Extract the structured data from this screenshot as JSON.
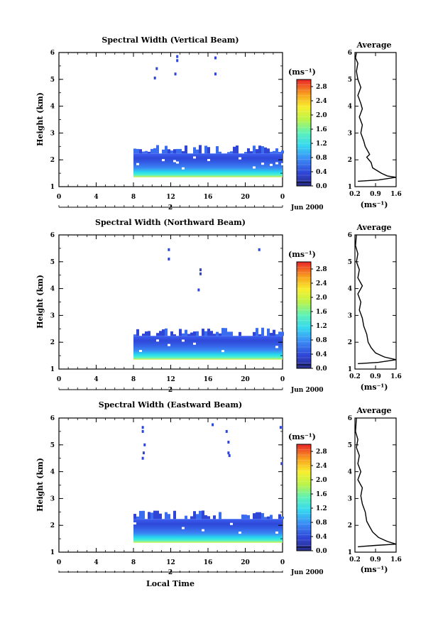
{
  "panels": [
    {
      "title": "Spectral Width (Vertical Beam)",
      "ylabel": "Height (km)",
      "unit_label": "(ms⁻¹)",
      "date_label": "Jun 2000",
      "day_label": "2",
      "avg_title": "Average",
      "avg_xlabel": "(ms⁻¹)"
    },
    {
      "title": "Spectral Width (Northward Beam)",
      "ylabel": "Height (km)",
      "unit_label": "(ms⁻¹)",
      "date_label": "Jun 2000",
      "day_label": "2",
      "avg_title": "Average",
      "avg_xlabel": "(ms⁻¹)"
    },
    {
      "title": "Spectral Width (Eastward Beam)",
      "ylabel": "Height (km)",
      "unit_label": "(ms⁻¹)",
      "date_label": "Jun 2000",
      "day_label": "2",
      "avg_title": "Average",
      "avg_xlabel": "(ms⁻¹)"
    }
  ],
  "xlabel_bottom": "Local Time",
  "chart_data": [
    {
      "type": "heatmap",
      "title": "Spectral Width (Vertical Beam)",
      "ylabel": "Height (km)",
      "xlim": [
        0,
        24
      ],
      "ylim": [
        1,
        6
      ],
      "xticks": [
        "0",
        "4",
        "8",
        "12",
        "16",
        "20",
        "0"
      ],
      "yticks": [
        "1",
        "2",
        "3",
        "4",
        "5",
        "6"
      ],
      "colorbar": {
        "ticks": [
          "0.0",
          "0.4",
          "0.8",
          "1.2",
          "1.6",
          "2.0",
          "2.4",
          "2.8"
        ],
        "range": [
          0,
          3.0
        ]
      },
      "data_region": {
        "x": [
          8,
          24
        ],
        "y": [
          1.35,
          2.5
        ]
      },
      "average_profile": {
        "title": "Average",
        "xlabel": "(ms⁻¹)",
        "xticks": [
          "0.2",
          "0.9",
          "1.6"
        ],
        "xlim": [
          0.2,
          1.6
        ],
        "yticks": [
          "1",
          "2",
          "3",
          "4",
          "5",
          "6"
        ],
        "ylim": [
          1,
          6
        ],
        "points": [
          [
            0.3,
            1.2
          ],
          [
            1.0,
            1.25
          ],
          [
            1.6,
            1.35
          ],
          [
            1.3,
            1.4
          ],
          [
            1.1,
            1.5
          ],
          [
            0.8,
            1.7
          ],
          [
            0.75,
            1.9
          ],
          [
            0.6,
            2.1
          ],
          [
            0.7,
            2.2
          ],
          [
            0.55,
            2.5
          ],
          [
            0.5,
            2.7
          ],
          [
            0.4,
            3.0
          ],
          [
            0.45,
            3.3
          ],
          [
            0.35,
            3.6
          ],
          [
            0.45,
            3.9
          ],
          [
            0.4,
            4.1
          ],
          [
            0.3,
            4.4
          ],
          [
            0.4,
            4.7
          ],
          [
            0.3,
            5.0
          ],
          [
            0.25,
            5.3
          ],
          [
            0.3,
            5.6
          ],
          [
            0.22,
            5.8
          ],
          [
            0.25,
            6.0
          ]
        ]
      }
    },
    {
      "type": "heatmap",
      "title": "Spectral Width (Northward Beam)",
      "ylabel": "Height (km)",
      "xlim": [
        0,
        24
      ],
      "ylim": [
        1,
        6
      ],
      "xticks": [
        "0",
        "4",
        "8",
        "12",
        "16",
        "20",
        "0"
      ],
      "yticks": [
        "1",
        "2",
        "3",
        "4",
        "5",
        "6"
      ],
      "colorbar": {
        "ticks": [
          "0.0",
          "0.4",
          "0.8",
          "1.2",
          "1.6",
          "2.0",
          "2.4",
          "2.8"
        ],
        "range": [
          0,
          3.0
        ]
      },
      "data_region": {
        "x": [
          8,
          24
        ],
        "y": [
          1.35,
          2.5
        ]
      },
      "average_profile": {
        "title": "Average",
        "xlabel": "(ms⁻¹)",
        "xticks": [
          "0.2",
          "0.9",
          "1.6"
        ],
        "xlim": [
          0.2,
          1.6
        ],
        "yticks": [
          "1",
          "2",
          "3",
          "4",
          "5",
          "6"
        ],
        "ylim": [
          1,
          6
        ],
        "points": [
          [
            0.3,
            1.2
          ],
          [
            1.0,
            1.25
          ],
          [
            1.6,
            1.35
          ],
          [
            1.2,
            1.45
          ],
          [
            0.9,
            1.6
          ],
          [
            0.75,
            1.8
          ],
          [
            0.65,
            2.0
          ],
          [
            0.6,
            2.3
          ],
          [
            0.5,
            2.6
          ],
          [
            0.45,
            2.9
          ],
          [
            0.35,
            3.2
          ],
          [
            0.4,
            3.5
          ],
          [
            0.3,
            3.8
          ],
          [
            0.45,
            4.1
          ],
          [
            0.3,
            4.4
          ],
          [
            0.35,
            4.7
          ],
          [
            0.25,
            5.0
          ],
          [
            0.3,
            5.3
          ],
          [
            0.22,
            5.6
          ],
          [
            0.25,
            6.0
          ]
        ]
      }
    },
    {
      "type": "heatmap",
      "title": "Spectral Width (Eastward Beam)",
      "ylabel": "Height (km)",
      "xlim": [
        0,
        24
      ],
      "ylim": [
        1,
        6
      ],
      "xticks": [
        "0",
        "4",
        "8",
        "12",
        "16",
        "20",
        "0"
      ],
      "yticks": [
        "1",
        "2",
        "3",
        "4",
        "5",
        "6"
      ],
      "colorbar": {
        "ticks": [
          "0.0",
          "0.4",
          "0.8",
          "1.2",
          "1.6",
          "2.0",
          "2.4",
          "2.8"
        ],
        "range": [
          0,
          3.0
        ]
      },
      "data_region": {
        "x": [
          8,
          24
        ],
        "y": [
          1.35,
          2.5
        ]
      },
      "average_profile": {
        "title": "Average",
        "xlabel": "(ms⁻¹)",
        "xticks": [
          "0.2",
          "0.9",
          "1.6"
        ],
        "xlim": [
          0.2,
          1.6
        ],
        "yticks": [
          "1",
          "2",
          "3",
          "4",
          "5",
          "6"
        ],
        "ylim": [
          1,
          6
        ],
        "points": [
          [
            0.3,
            1.2
          ],
          [
            0.9,
            1.25
          ],
          [
            1.6,
            1.3
          ],
          [
            1.3,
            1.4
          ],
          [
            1.0,
            1.55
          ],
          [
            0.8,
            1.75
          ],
          [
            0.7,
            1.95
          ],
          [
            0.6,
            2.15
          ],
          [
            0.55,
            2.5
          ],
          [
            0.45,
            2.8
          ],
          [
            0.4,
            3.1
          ],
          [
            0.45,
            3.4
          ],
          [
            0.3,
            3.7
          ],
          [
            0.4,
            4.0
          ],
          [
            0.3,
            4.3
          ],
          [
            0.35,
            4.6
          ],
          [
            0.25,
            4.9
          ],
          [
            0.3,
            5.2
          ],
          [
            0.22,
            5.5
          ],
          [
            0.25,
            6.0
          ]
        ]
      }
    }
  ]
}
